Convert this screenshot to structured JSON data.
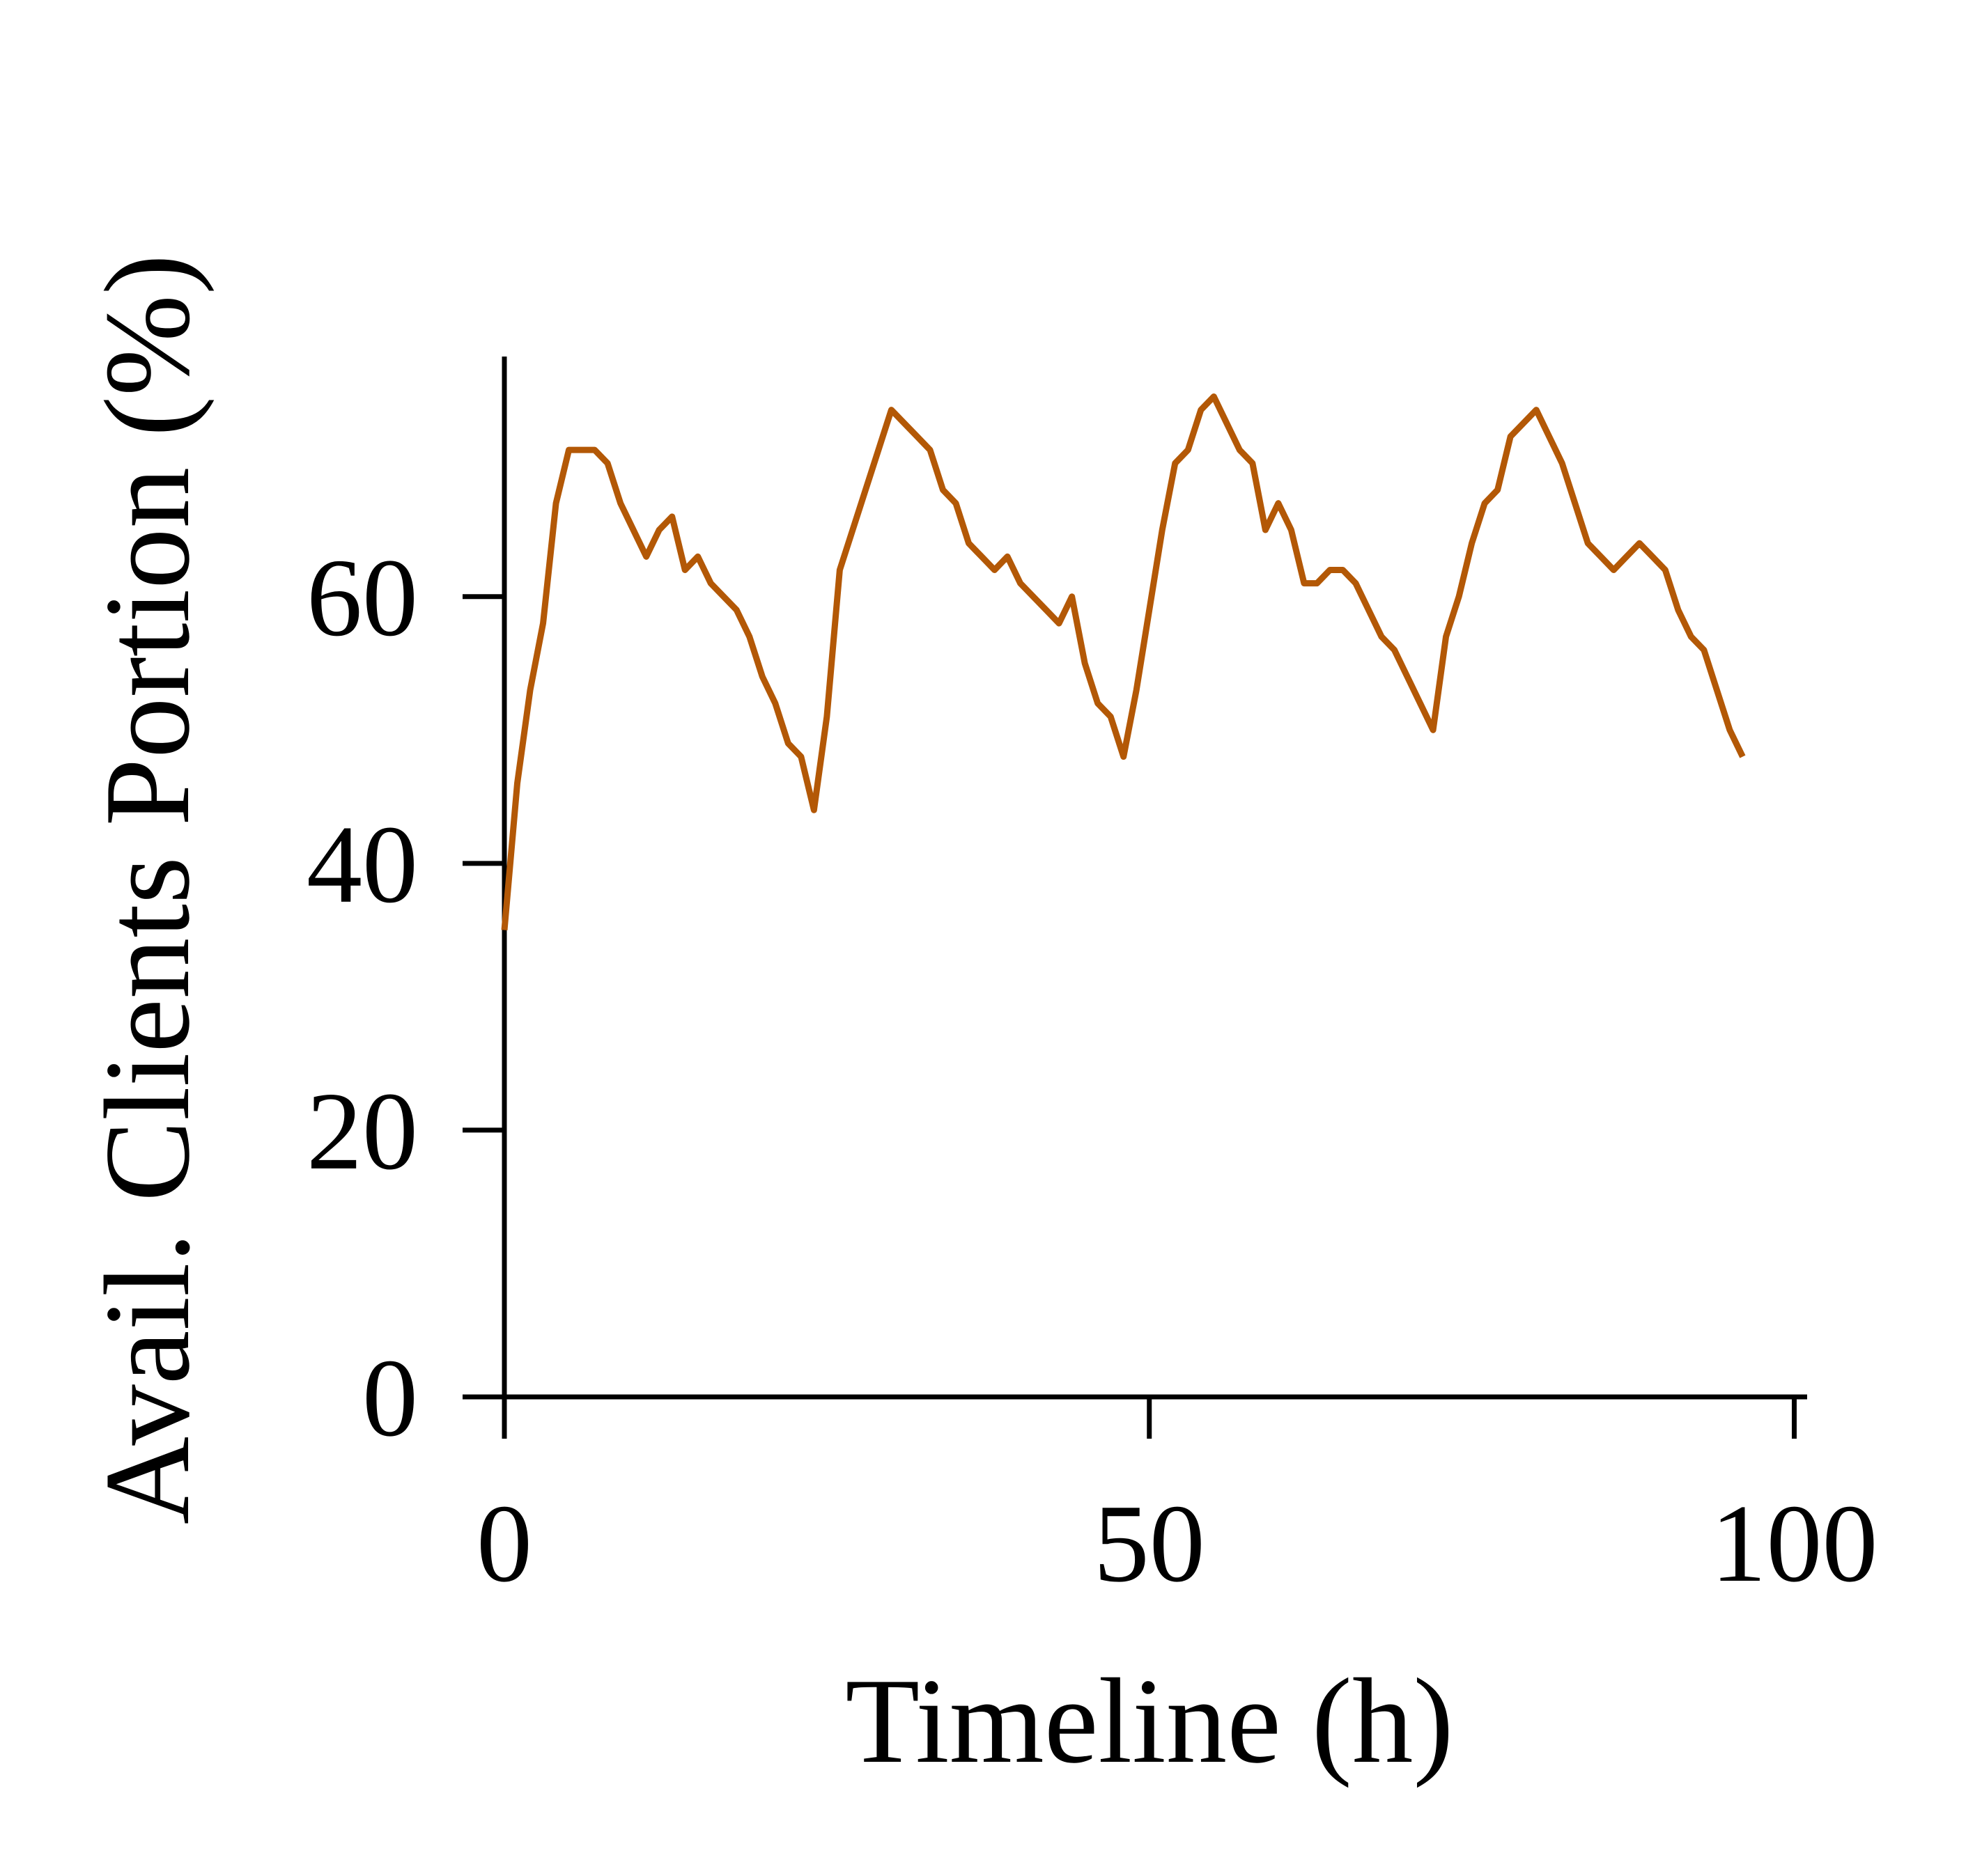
{
  "chart_data": {
    "type": "line",
    "xlabel": "Timeline (h)",
    "ylabel": "Avail. Clients Portion (%)",
    "x": [
      0,
      1,
      2,
      3,
      4,
      5,
      6,
      7,
      8,
      9,
      10,
      11,
      12,
      13,
      14,
      15,
      16,
      17,
      18,
      19,
      20,
      21,
      22,
      23,
      24,
      25,
      26,
      27,
      28,
      29,
      30,
      31,
      32,
      33,
      34,
      35,
      36,
      37,
      38,
      39,
      40,
      41,
      42,
      43,
      44,
      45,
      46,
      47,
      48,
      49,
      50,
      51,
      52,
      53,
      54,
      55,
      56,
      57,
      58,
      59,
      60,
      61,
      62,
      63,
      64,
      65,
      66,
      67,
      68,
      69,
      70,
      71,
      72,
      73,
      74,
      75,
      76,
      77,
      78,
      79,
      80,
      81,
      82,
      83,
      84,
      85,
      86,
      87,
      88,
      89,
      90,
      91,
      92,
      93,
      94,
      95,
      96
    ],
    "series": [
      {
        "name": "Avail. Clients Portion",
        "color": "#b35806",
        "values": [
          35,
          46,
          53,
          58,
          67,
          71,
          71,
          71,
          70,
          67,
          65,
          63,
          65,
          66,
          62,
          63,
          61,
          60,
          59,
          57,
          54,
          52,
          49,
          48,
          44,
          51,
          62,
          65,
          68,
          71,
          74,
          73,
          72,
          71,
          68,
          67,
          64,
          63,
          62,
          63,
          61,
          60,
          59,
          58,
          60,
          55,
          52,
          51,
          48,
          53,
          59,
          65,
          70,
          71,
          74,
          75,
          73,
          71,
          70,
          65,
          67,
          65,
          61,
          61,
          62,
          62,
          61,
          59,
          57,
          56,
          54,
          52,
          50,
          57,
          60,
          64,
          67,
          68,
          72,
          73,
          74,
          72,
          70,
          67,
          64,
          63,
          62,
          63,
          64,
          63,
          62,
          59,
          57,
          56,
          53,
          50,
          48
        ]
      }
    ],
    "xlim": [
      0,
      101
    ],
    "xticks": [
      0,
      50,
      100
    ],
    "ylim": [
      0,
      78
    ],
    "yticks": [
      0,
      20,
      40,
      60
    ]
  }
}
